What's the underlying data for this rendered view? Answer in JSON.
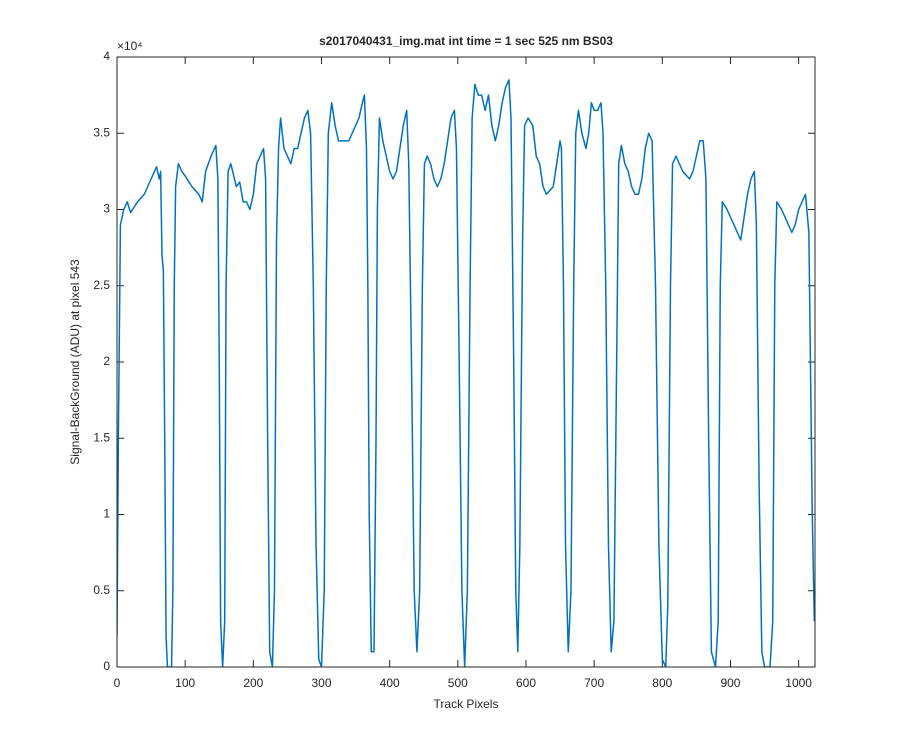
{
  "chart_data": {
    "type": "line",
    "title": "s2017040431_img.mat int time = 1 sec  525 nm BS03",
    "xlabel": "Track Pixels",
    "ylabel": "Signal-BackGround (ADU) at pixel 543",
    "exponent_label": "×10⁴",
    "color": "#0072bd",
    "xlim": [
      0,
      1024
    ],
    "ylim": [
      0,
      4
    ],
    "xticks": [
      0,
      100,
      200,
      300,
      400,
      500,
      600,
      700,
      800,
      900,
      1000
    ],
    "yticks": [
      0,
      0.5,
      1,
      1.5,
      2,
      2.5,
      3,
      3.5,
      4
    ],
    "x": [
      0,
      2,
      5,
      10,
      15,
      20,
      30,
      40,
      50,
      58,
      62,
      64,
      66,
      68,
      70,
      72,
      74,
      80,
      82,
      84,
      86,
      90,
      95,
      100,
      110,
      120,
      125,
      130,
      138,
      145,
      148,
      150,
      152,
      155,
      158,
      160,
      163,
      167,
      175,
      180,
      185,
      190,
      195,
      200,
      205,
      210,
      215,
      218,
      221,
      224,
      228,
      231,
      234,
      237,
      240,
      245,
      250,
      255,
      260,
      265,
      270,
      275,
      280,
      284,
      288,
      292,
      296,
      300,
      304,
      307,
      310,
      315,
      320,
      325,
      330,
      340,
      350,
      355,
      360,
      363,
      366,
      368,
      370,
      373,
      377,
      380,
      382,
      385,
      390,
      395,
      400,
      405,
      410,
      415,
      420,
      425,
      428,
      432,
      436,
      440,
      444,
      448,
      451,
      455,
      460,
      465,
      470,
      475,
      480,
      485,
      490,
      495,
      498,
      502,
      506,
      510,
      514,
      518,
      521,
      525,
      530,
      535,
      540,
      545,
      550,
      555,
      560,
      565,
      570,
      575,
      578,
      582,
      585,
      588,
      591,
      595,
      598,
      603,
      610,
      615,
      620,
      625,
      630,
      640,
      645,
      650,
      652,
      655,
      658,
      662,
      666,
      670,
      673,
      677,
      682,
      688,
      692,
      696,
      700,
      705,
      710,
      713,
      717,
      721,
      725,
      729,
      733,
      736,
      740,
      745,
      750,
      755,
      760,
      765,
      770,
      775,
      780,
      785,
      790,
      795,
      800,
      805,
      808,
      812,
      815,
      820,
      825,
      830,
      840,
      845,
      850,
      855,
      860,
      864,
      868,
      872,
      878,
      882,
      885,
      888,
      895,
      900,
      905,
      910,
      915,
      920,
      925,
      930,
      935,
      938,
      942,
      946,
      950,
      958,
      962,
      965,
      968,
      975,
      980,
      985,
      990,
      995,
      1000,
      1005,
      1010,
      1015,
      1020,
      1023
    ],
    "values": [
      0.2,
      1.5,
      2.9,
      3.0,
      3.05,
      2.98,
      3.05,
      3.1,
      3.2,
      3.28,
      3.2,
      3.25,
      2.7,
      2.6,
      1.5,
      0.2,
      0,
      0,
      0.5,
      2.5,
      3.15,
      3.3,
      3.25,
      3.22,
      3.15,
      3.1,
      3.05,
      3.25,
      3.35,
      3.42,
      3.2,
      2.0,
      0.3,
      0,
      0.3,
      2.5,
      3.25,
      3.3,
      3.15,
      3.18,
      3.05,
      3.05,
      3.0,
      3.1,
      3.3,
      3.35,
      3.4,
      3.2,
      1.5,
      0.1,
      0,
      0.5,
      2.8,
      3.4,
      3.6,
      3.4,
      3.35,
      3.3,
      3.4,
      3.4,
      3.5,
      3.6,
      3.65,
      3.5,
      2.5,
      0.8,
      0.05,
      0,
      0.5,
      2.5,
      3.5,
      3.7,
      3.55,
      3.45,
      3.45,
      3.45,
      3.55,
      3.6,
      3.7,
      3.75,
      3.4,
      2.5,
      1.0,
      0.1,
      0.1,
      1.5,
      3.0,
      3.6,
      3.45,
      3.35,
      3.25,
      3.2,
      3.25,
      3.4,
      3.55,
      3.65,
      3.3,
      2.0,
      0.5,
      0.1,
      0.5,
      2.5,
      3.3,
      3.35,
      3.3,
      3.2,
      3.15,
      3.2,
      3.3,
      3.45,
      3.6,
      3.65,
      3.4,
      2.0,
      0.5,
      0,
      0.5,
      2.5,
      3.6,
      3.82,
      3.75,
      3.75,
      3.65,
      3.75,
      3.55,
      3.45,
      3.55,
      3.7,
      3.8,
      3.85,
      3.6,
      2.0,
      0.5,
      0.1,
      0.8,
      2.8,
      3.55,
      3.6,
      3.55,
      3.35,
      3.3,
      3.15,
      3.1,
      3.15,
      3.3,
      3.45,
      3.4,
      2.5,
      0.8,
      0.1,
      0.5,
      2.5,
      3.5,
      3.65,
      3.5,
      3.4,
      3.5,
      3.7,
      3.65,
      3.65,
      3.7,
      3.5,
      2.5,
      0.8,
      0.1,
      0.3,
      2.0,
      3.3,
      3.42,
      3.3,
      3.25,
      3.15,
      3.1,
      3.1,
      3.2,
      3.4,
      3.5,
      3.45,
      2.5,
      0.8,
      0.05,
      0,
      0.4,
      2.5,
      3.3,
      3.35,
      3.3,
      3.25,
      3.2,
      3.25,
      3.35,
      3.45,
      3.45,
      3.2,
      1.5,
      0.1,
      0,
      0.3,
      2.5,
      3.05,
      3.0,
      2.95,
      2.9,
      2.85,
      2.8,
      2.95,
      3.1,
      3.2,
      3.25,
      2.9,
      1.2,
      0.1,
      0,
      0,
      0.3,
      2.5,
      3.05,
      3.0,
      2.95,
      2.9,
      2.85,
      2.9,
      3.0,
      3.05,
      3.1,
      2.85,
      1.0,
      0.3
    ]
  }
}
